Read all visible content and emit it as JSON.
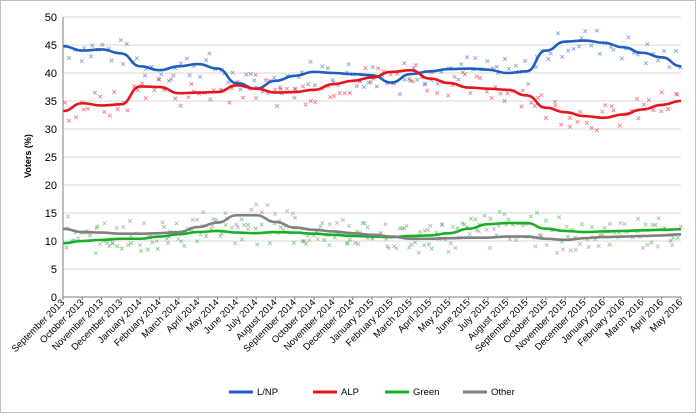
{
  "chart_data": {
    "type": "line",
    "title": "",
    "xlabel": "",
    "ylabel": "Voters (%)",
    "ylim": [
      0,
      50
    ],
    "yticks": [
      0,
      5,
      10,
      15,
      20,
      25,
      30,
      35,
      40,
      45,
      50
    ],
    "grid": true,
    "legend_position": "bottom",
    "categories": [
      "September 2013",
      "October 2013",
      "November 2013",
      "December 2013",
      "January 2014",
      "February 2014",
      "March 2014",
      "April 2014",
      "May 2014",
      "June 2014",
      "July 2014",
      "August 2014",
      "September 2014",
      "October 2014",
      "November 2014",
      "December 2014",
      "January 2015",
      "February 2015",
      "March 2015",
      "April 2015",
      "May 2015",
      "June 2015",
      "July 2015",
      "August 2015",
      "September 2015",
      "October 2015",
      "November 2015",
      "December 2015",
      "January 2016",
      "February 2016",
      "March 2016",
      "April 2016",
      "May 2016"
    ],
    "series": [
      {
        "name": "L/NP",
        "color": "#1f5fbf",
        "values": [
          44.8,
          44.0,
          44.2,
          43.5,
          41.2,
          40.5,
          41.2,
          41.6,
          40.8,
          38.2,
          37.2,
          38.6,
          39.5,
          40.2,
          40.0,
          39.8,
          39.6,
          38.3,
          39.8,
          40.3,
          40.7,
          40.8,
          40.6,
          40.0,
          40.3,
          44.0,
          45.6,
          45.8,
          45.4,
          44.6,
          43.6,
          42.8,
          41.2
        ]
      },
      {
        "name": "ALP",
        "color": "#e8141b",
        "values": [
          33.2,
          34.6,
          34.2,
          34.4,
          37.6,
          37.5,
          36.4,
          36.5,
          36.6,
          37.8,
          37.2,
          36.5,
          36.6,
          37.0,
          38.0,
          38.6,
          39.2,
          40.2,
          40.5,
          39.0,
          38.2,
          37.4,
          37.2,
          37.0,
          36.0,
          33.8,
          33.0,
          32.3,
          32.0,
          32.6,
          33.5,
          34.3,
          35.0
        ]
      },
      {
        "name": "Green",
        "color": "#17b025",
        "values": [
          9.6,
          10.0,
          10.2,
          10.4,
          10.4,
          10.8,
          11.2,
          11.6,
          11.8,
          11.5,
          11.4,
          11.6,
          11.5,
          11.3,
          11.1,
          10.9,
          10.8,
          10.7,
          10.9,
          11.0,
          11.4,
          12.2,
          13.0,
          13.2,
          13.2,
          12.2,
          11.8,
          11.6,
          11.7,
          11.8,
          11.9,
          12.0,
          12.1
        ]
      },
      {
        "name": "Other",
        "color": "#808080",
        "values": [
          12.2,
          11.6,
          11.5,
          11.3,
          11.3,
          11.4,
          11.6,
          12.5,
          13.3,
          14.6,
          14.6,
          13.4,
          12.4,
          12.0,
          11.7,
          11.4,
          11.1,
          10.8,
          10.4,
          10.4,
          10.5,
          10.6,
          10.6,
          10.8,
          10.8,
          10.4,
          10.2,
          10.5,
          10.7,
          10.8,
          10.9,
          11.0,
          11.2
        ]
      }
    ]
  }
}
